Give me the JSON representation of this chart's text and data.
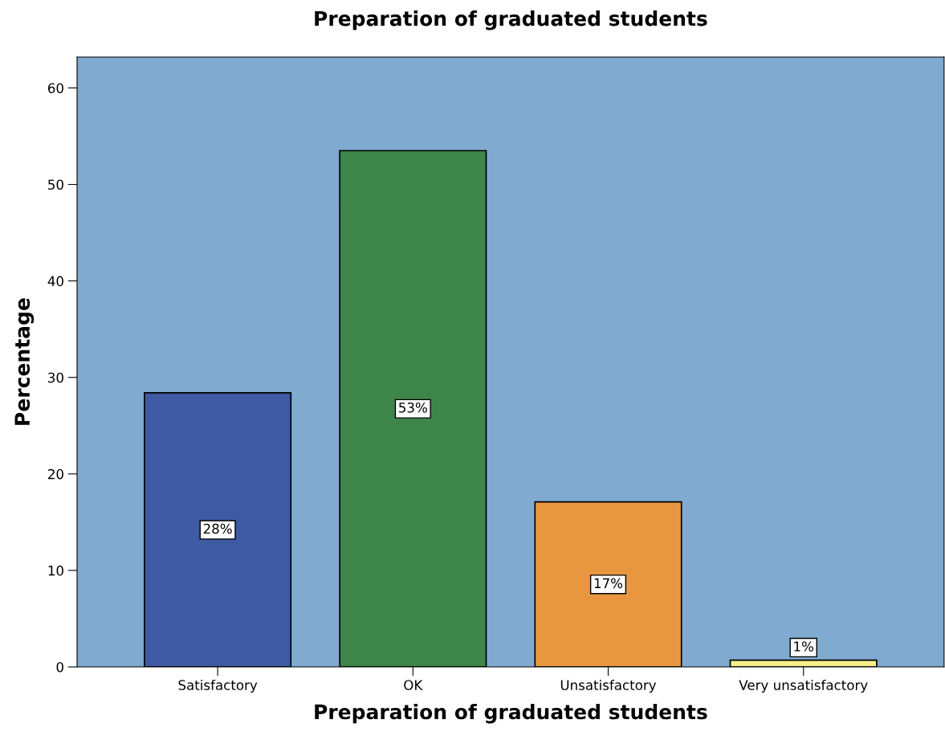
{
  "chart_data": {
    "type": "bar",
    "title": "Preparation of graduated students",
    "xlabel": "Preparation of graduated students",
    "ylabel": "Percentage",
    "categories": [
      "Satisfactory",
      "OK",
      "Unsatisfactory",
      "Very unsatisfactory"
    ],
    "values": [
      28.4,
      53.5,
      17.1,
      0.7
    ],
    "colors": [
      "#3d5aa3",
      "#3e854a",
      "#e8963f",
      "#f5f08a"
    ],
    "value_labels": [
      "28%",
      "53%",
      "17%",
      "1%"
    ],
    "ylim": [
      0,
      63.2
    ],
    "yticks": [
      0,
      10,
      20,
      30,
      40,
      50,
      60
    ],
    "grid": false
  }
}
